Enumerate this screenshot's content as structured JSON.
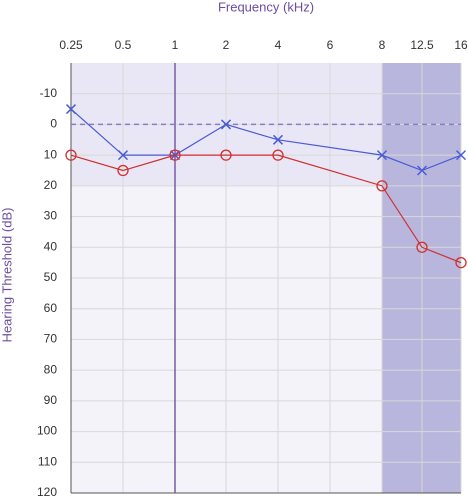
{
  "chart_data": {
    "type": "line",
    "title": "Frequency (kHz)",
    "y_label": "Hearing Threshold (dB)",
    "xticks": [
      0.25,
      0.5,
      1,
      2,
      4,
      6,
      8,
      12.5,
      16
    ],
    "ylim": [
      -20,
      120
    ],
    "yticks": [
      -10,
      0,
      10,
      20,
      30,
      40,
      50,
      60,
      70,
      80,
      90,
      100,
      110,
      120
    ],
    "y_inverted": true,
    "grid": true,
    "normal_range": [
      -20,
      20
    ],
    "highlight_x": [
      8,
      16
    ],
    "reference_x": 1,
    "reference_y": 0,
    "series": [
      {
        "marker": "x",
        "color": "#4a5bd4",
        "x": [
          0.25,
          0.5,
          1,
          2,
          4,
          8,
          12.5,
          16
        ],
        "values": [
          -5,
          10,
          10,
          0,
          5,
          10,
          15,
          10
        ]
      },
      {
        "marker": "o",
        "color": "#d0302f",
        "x": [
          0.25,
          0.5,
          1,
          2,
          4,
          8,
          12.5,
          16
        ],
        "values": [
          10,
          15,
          10,
          10,
          10,
          20,
          40,
          45
        ]
      }
    ]
  }
}
